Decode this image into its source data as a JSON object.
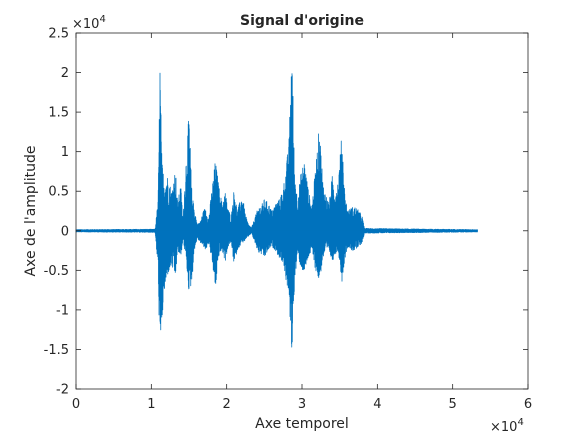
{
  "chart_data": {
    "type": "line",
    "title": "Signal d'origine",
    "xlabel": "Axe temporel",
    "ylabel": "Axe de l'amplitude",
    "x_multiplier_label": "×10",
    "x_multiplier_exp": "4",
    "y_multiplier_label": "×10",
    "y_multiplier_exp": "4",
    "xlim": [
      0,
      60000
    ],
    "ylim": [
      -20000,
      25000
    ],
    "x_ticks": [
      0,
      10000,
      20000,
      30000,
      40000,
      50000,
      60000
    ],
    "x_tick_labels": [
      "0",
      "1",
      "2",
      "3",
      "4",
      "5",
      "6"
    ],
    "y_ticks": [
      -20000,
      -15000,
      -10000,
      -5000,
      0,
      5000,
      10000,
      15000,
      20000,
      25000
    ],
    "y_tick_labels": [
      "-2",
      "-1.5",
      "-1",
      "-0.5",
      "0",
      "0.5",
      "1",
      "1.5",
      "2",
      "2.5"
    ],
    "grid": false,
    "series": [
      {
        "color": "#0072bd",
        "signal_end": 53300,
        "envelope": {
          "x": [
            0,
            10500,
            10900,
            11150,
            11400,
            11700,
            12200,
            12700,
            13200,
            13500,
            13900,
            14200,
            14600,
            15000,
            15400,
            15700,
            16100,
            16500,
            16900,
            17200,
            17600,
            18000,
            18500,
            19000,
            19400,
            19800,
            20200,
            20600,
            21000,
            21400,
            21700,
            22100,
            22500,
            22900,
            23300,
            24200,
            24600,
            25000,
            25500,
            26000,
            26500,
            27000,
            27500,
            27900,
            28300,
            28650,
            29000,
            29400,
            29800,
            30300,
            30800,
            31300,
            31800,
            32300,
            32800,
            33200,
            33600,
            34000,
            34400,
            34800,
            35300,
            35700,
            36100,
            36600,
            37100,
            37600,
            38000,
            38300,
            53300
          ],
          "max": [
            150,
            200,
            4000,
            21800,
            9000,
            6500,
            7000,
            5000,
            8000,
            3500,
            6000,
            1500,
            9000,
            15000,
            4500,
            3000,
            800,
            1200,
            2500,
            3000,
            1500,
            5000,
            9000,
            5500,
            3500,
            5000,
            2800,
            1800,
            5500,
            2500,
            3500,
            4500,
            2000,
            800,
            400,
            3000,
            3200,
            4000,
            3600,
            2500,
            3500,
            4000,
            5500,
            8000,
            12000,
            24800,
            8000,
            4000,
            7000,
            9000,
            5500,
            3000,
            8000,
            13500,
            6000,
            4500,
            3500,
            7000,
            5000,
            6500,
            12500,
            4500,
            2500,
            3000,
            3000,
            2500,
            1800,
            300,
            150
          ],
          "min": [
            -150,
            -200,
            -5000,
            -17300,
            -12000,
            -8000,
            -5500,
            -4500,
            -6000,
            -2500,
            -3500,
            -1200,
            -3500,
            -8000,
            -6500,
            -2500,
            -1000,
            -1500,
            -2000,
            -2500,
            -1500,
            -3500,
            -7500,
            -3000,
            -2500,
            -4000,
            -2000,
            -1500,
            -4500,
            -2500,
            -2000,
            -1500,
            -1200,
            -700,
            -300,
            -2800,
            -3000,
            -3500,
            -2500,
            -2000,
            -2500,
            -3500,
            -4000,
            -6500,
            -9000,
            -15800,
            -7000,
            -3000,
            -4500,
            -5500,
            -3500,
            -2500,
            -5000,
            -6500,
            -3500,
            -2500,
            -2500,
            -4000,
            -3000,
            -2500,
            -6500,
            -3500,
            -2000,
            -2500,
            -2500,
            -2000,
            -1500,
            -300,
            -150
          ]
        }
      }
    ]
  }
}
